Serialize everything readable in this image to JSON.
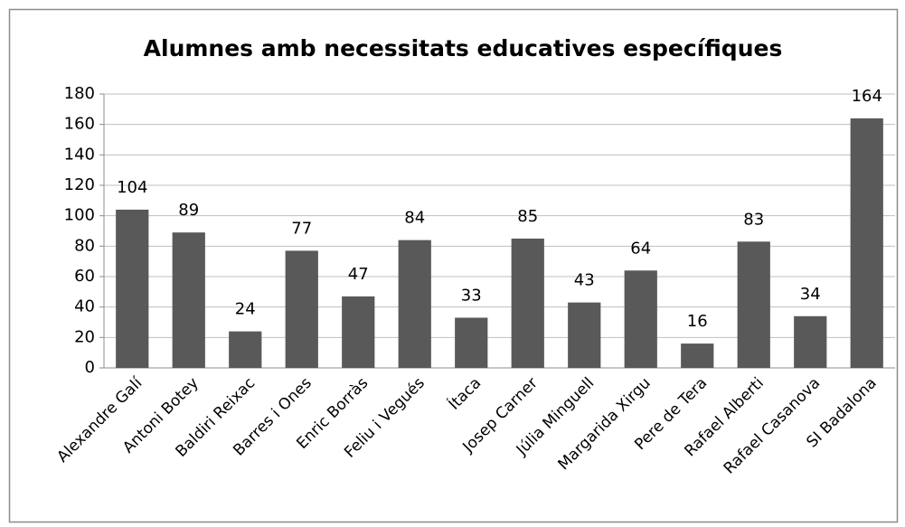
{
  "chart_data": {
    "type": "bar",
    "title": "Alumnes amb necessitats educatives específiques",
    "categories": [
      "Alexandre Galí",
      "Antoni Botey",
      "Baldiri Reixac",
      "Barres i Ones",
      "Enric Borràs",
      "Feliu i Vegués",
      "Ítaca",
      "Josep Carner",
      "Júlia Minguell",
      "Margarida Xirgu",
      "Pere de Tera",
      "Rafael Alberti",
      "Rafael Casanova",
      "SI Badalona"
    ],
    "values": [
      104,
      89,
      24,
      77,
      47,
      84,
      33,
      85,
      43,
      64,
      16,
      83,
      34,
      164
    ],
    "color": "#595959",
    "ylim": [
      0,
      180
    ],
    "yticks": [
      0,
      20,
      40,
      60,
      80,
      100,
      120,
      140,
      160,
      180
    ],
    "grid": true
  }
}
